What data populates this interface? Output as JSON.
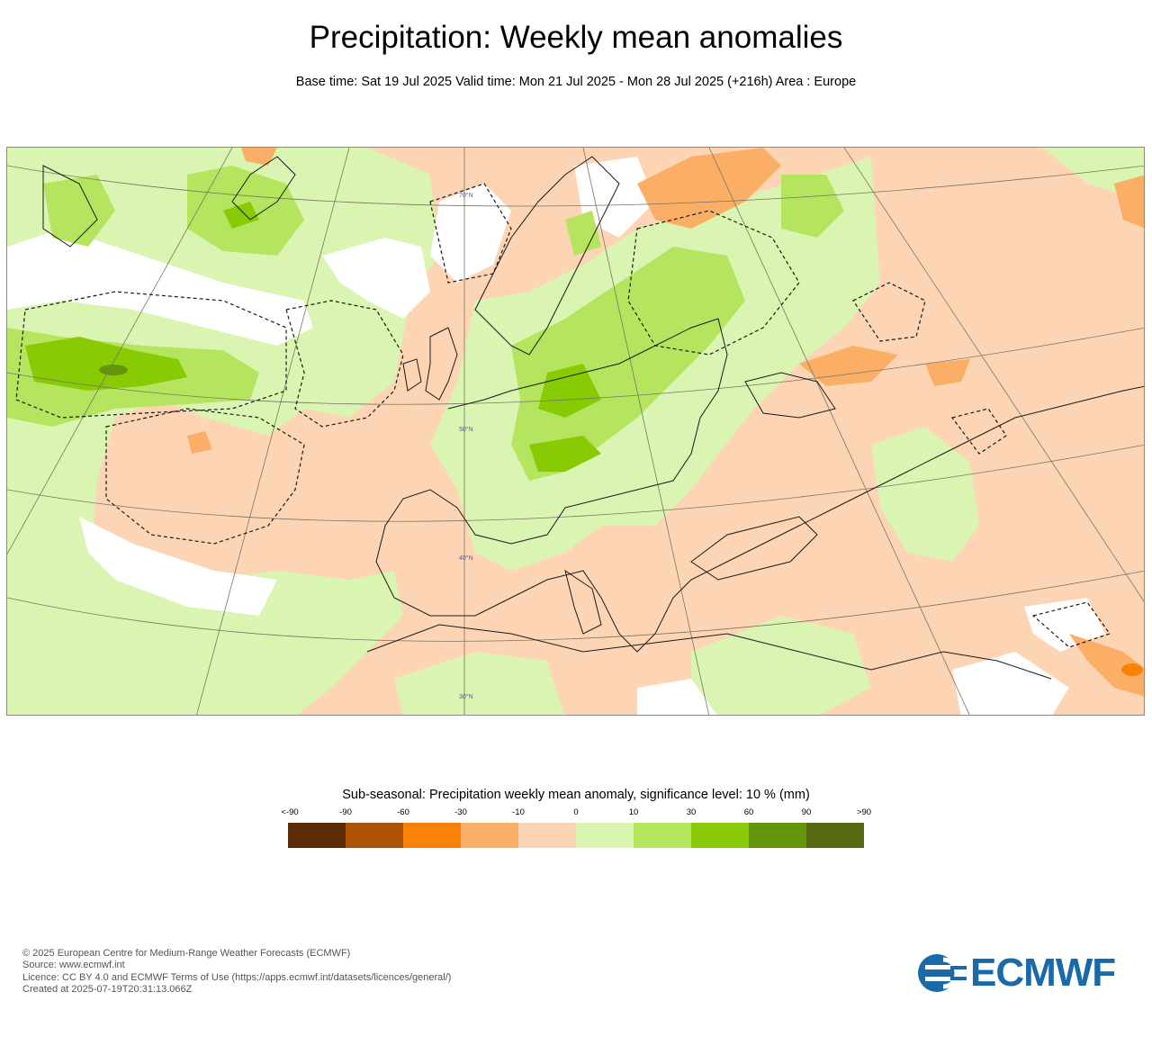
{
  "header": {
    "title": "Precipitation: Weekly mean anomalies",
    "subtitle": "Base time: Sat 19 Jul 2025 Valid time: Mon 21 Jul 2025 - Mon 28 Jul 2025 (+216h) Area : Europe"
  },
  "map": {
    "area": "Europe",
    "latitude_labels": [
      "70°N",
      "50°N",
      "40°N",
      "30°N"
    ],
    "colors": {
      "land_outline": "#1a1a1a",
      "graticule": "#7a7566",
      "significance_contour": "#1a1a1a"
    }
  },
  "legend": {
    "title": "Sub-seasonal: Precipitation weekly mean anomaly, significance level: 10 % (mm)",
    "ticks": [
      "<-90",
      "-90",
      "-60",
      "-30",
      "-10",
      "0",
      "10",
      "30",
      "60",
      "90",
      ">90"
    ],
    "colors": [
      "#5c2a06",
      "#ad5406",
      "#fb8107",
      "#fbae66",
      "#fdd5b4",
      "#daf4b1",
      "#b5e55e",
      "#88cb04",
      "#65950b",
      "#546a10"
    ]
  },
  "footer": {
    "lines": [
      "© 2025 European Centre for Medium-Range Weather Forecasts (ECMWF)",
      "Source: www.ecmwf.int",
      "Licence: CC BY 4.0 and ECMWF Terms of Use (https://apps.ecmwf.int/datasets/licences/general/)",
      "Created at 2025-07-19T20:31:13.066Z"
    ]
  },
  "logo": {
    "text": "ECMWF",
    "color": "#1a6aa8"
  }
}
